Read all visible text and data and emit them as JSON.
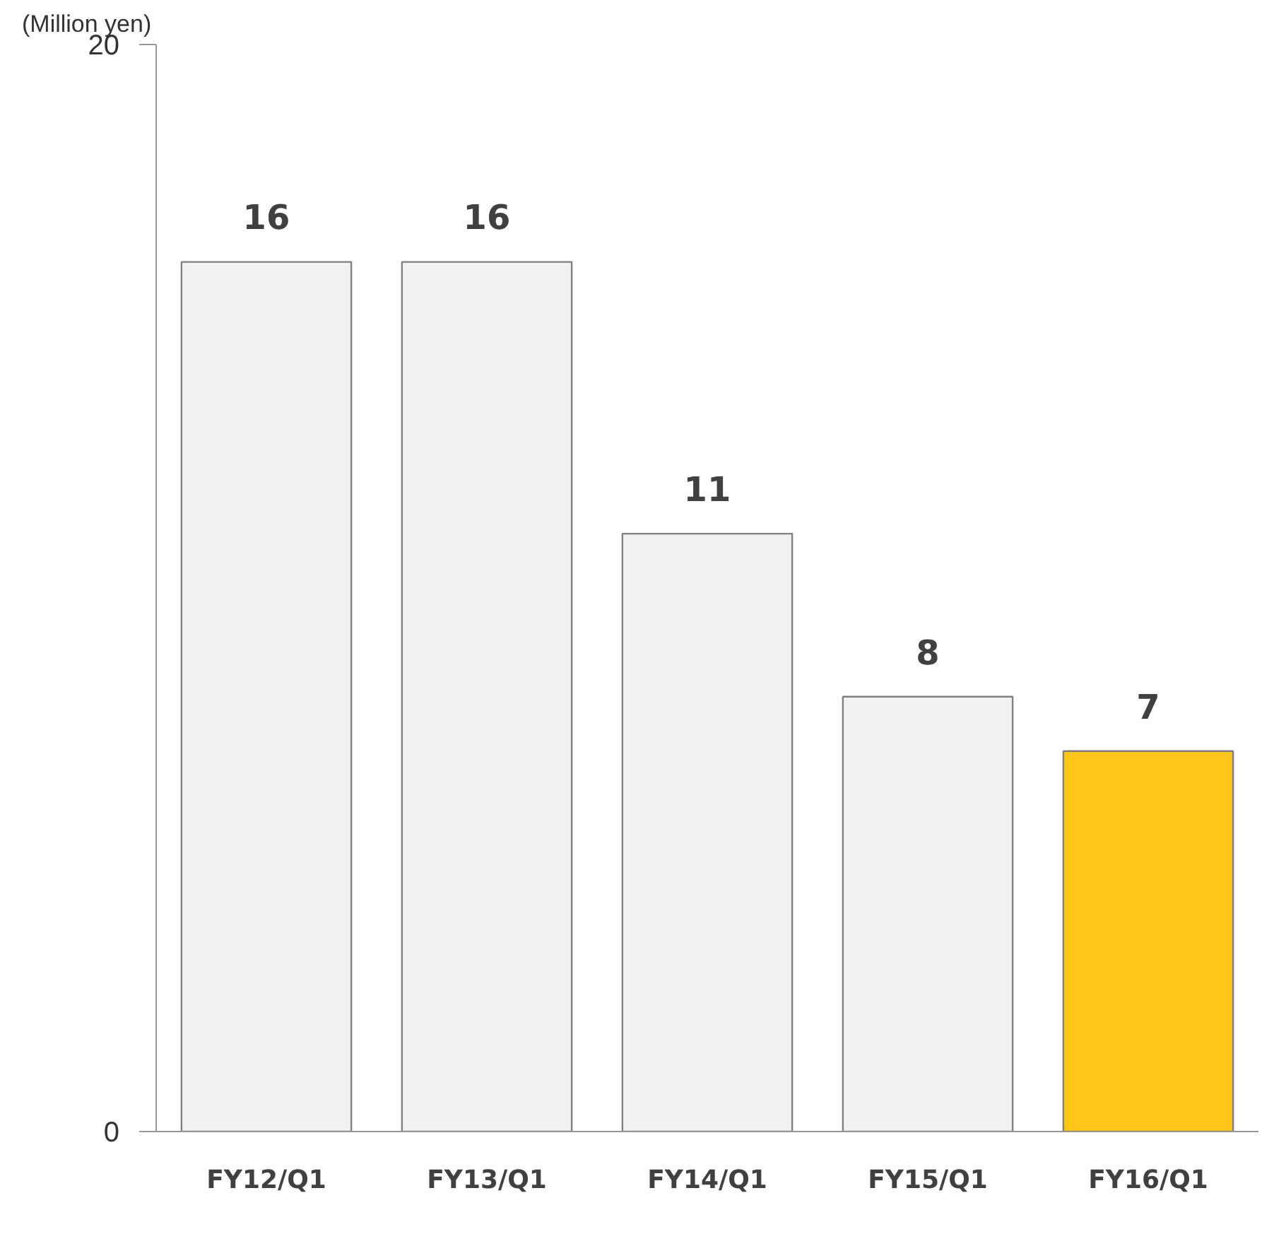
{
  "chart_data": {
    "type": "bar",
    "ylabel": "(Million yen)",
    "categories": [
      "FY12/Q1",
      "FY13/Q1",
      "FY14/Q1",
      "FY15/Q1",
      "FY16/Q1"
    ],
    "values": [
      16,
      16,
      11,
      8,
      7
    ],
    "colors": [
      "#f2f2f2",
      "#f2f2f2",
      "#f2f2f2",
      "#f2f2f2",
      "#ffc61a"
    ],
    "ylim": [
      0,
      20
    ],
    "yticks": [
      0,
      20
    ],
    "grid": false,
    "data_labels": true
  }
}
